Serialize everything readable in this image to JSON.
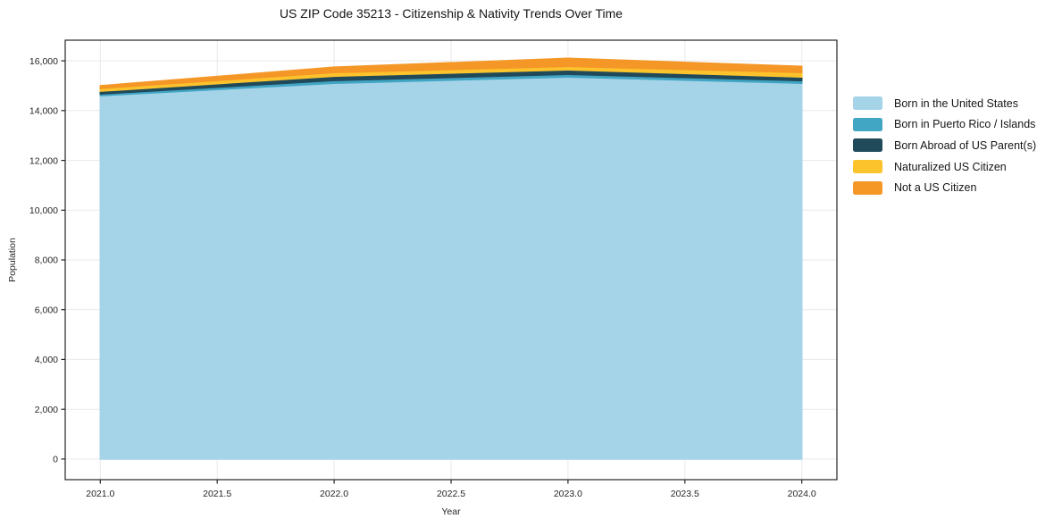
{
  "title": "US ZIP Code 35213 - Citizenship & Nativity Trends Over Time",
  "chart_data": {
    "type": "area",
    "stacked": true,
    "title": "US ZIP Code 35213 - Citizenship & Nativity Trends Over Time",
    "xlabel": "Year",
    "ylabel": "Population",
    "x": [
      2021,
      2022,
      2023,
      2024
    ],
    "xticks": [
      2021.0,
      2021.5,
      2022.0,
      2022.5,
      2023.0,
      2023.5,
      2024.0
    ],
    "xtick_labels": [
      "2021.0",
      "2021.5",
      "2022.0",
      "2022.5",
      "2023.0",
      "2023.5",
      "2024.0"
    ],
    "yticks": [
      0,
      2000,
      4000,
      6000,
      8000,
      10000,
      12000,
      14000,
      16000
    ],
    "ytick_labels": [
      "0",
      "2,000",
      "4,000",
      "6,000",
      "8,000",
      "10,000",
      "12,000",
      "14,000",
      "16,000"
    ],
    "xlim": [
      2020.85,
      2024.15
    ],
    "ylim": [
      -830,
      16830
    ],
    "grid": true,
    "legend_position": "right-outside",
    "series": [
      {
        "name": "Born in the United States",
        "color": "#a5d3e8",
        "values": [
          14600,
          15100,
          15350,
          15100
        ]
      },
      {
        "name": "Born in Puerto Rico / Islands",
        "color": "#41a5c4",
        "values": [
          70,
          110,
          110,
          105
        ]
      },
      {
        "name": "Born Abroad of US Parent(s)",
        "color": "#20495a",
        "values": [
          110,
          175,
          180,
          145
        ]
      },
      {
        "name": "Naturalized US Citizen",
        "color": "#fcc32d",
        "values": [
          110,
          145,
          140,
          180
        ]
      },
      {
        "name": "Not a US Citizen",
        "color": "#f49727",
        "values": [
          110,
          215,
          320,
          250
        ]
      }
    ]
  }
}
